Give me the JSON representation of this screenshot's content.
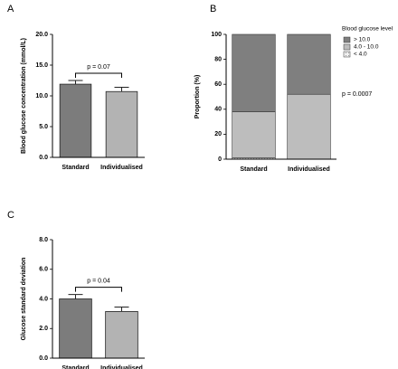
{
  "chart_data": [
    {
      "type": "bar",
      "panel": "A",
      "ylabel": "Blood glucose concentration (mmol/L)",
      "categories": [
        "Standard",
        "Individualised"
      ],
      "values": [
        11.9,
        10.7
      ],
      "errors": [
        0.6,
        0.7
      ],
      "colors": [
        "#7c7c7c",
        "#b3b3b3"
      ],
      "annotation": "p = 0.07",
      "ylim": [
        0,
        20
      ],
      "yticks": [
        {
          "value": 0,
          "label": "0.0"
        },
        {
          "value": 5,
          "label": "5.0"
        },
        {
          "value": 10,
          "label": "10.0"
        },
        {
          "value": 15,
          "label": "15.0"
        },
        {
          "value": 20,
          "label": "20.0"
        }
      ]
    },
    {
      "type": "stacked_bar",
      "panel": "B",
      "ylabel": "Proportion (%)",
      "categories": [
        "Standard",
        "Individualised"
      ],
      "legend_title": "Blood glucose level",
      "series": [
        {
          "name": "< 4.0",
          "color": "#f2f2f2",
          "values": [
            1,
            0
          ]
        },
        {
          "name": "4.0 - 10.0",
          "color": "#bdbdbd",
          "values": [
            37,
            52
          ]
        },
        {
          "name": "> 10.0",
          "color": "#7f7f7f",
          "values": [
            62,
            48
          ]
        }
      ],
      "annotation": "p = 0.0007",
      "ylim": [
        0,
        100
      ],
      "yticks": [
        0,
        20,
        40,
        60,
        80,
        100
      ]
    },
    {
      "type": "bar",
      "panel": "C",
      "ylabel": "Glucose standard deviation",
      "categories": [
        "Standard",
        "Individualised"
      ],
      "values": [
        4.0,
        3.15
      ],
      "errors": [
        0.3,
        0.3
      ],
      "colors": [
        "#7c7c7c",
        "#b3b3b3"
      ],
      "annotation": "p = 0.04",
      "ylim": [
        0,
        8
      ],
      "yticks": [
        {
          "value": 0,
          "label": "0.0"
        },
        {
          "value": 2,
          "label": "2.0"
        },
        {
          "value": 4,
          "label": "4.0"
        },
        {
          "value": 6,
          "label": "6.0"
        },
        {
          "value": 8,
          "label": "8.0"
        }
      ]
    }
  ]
}
